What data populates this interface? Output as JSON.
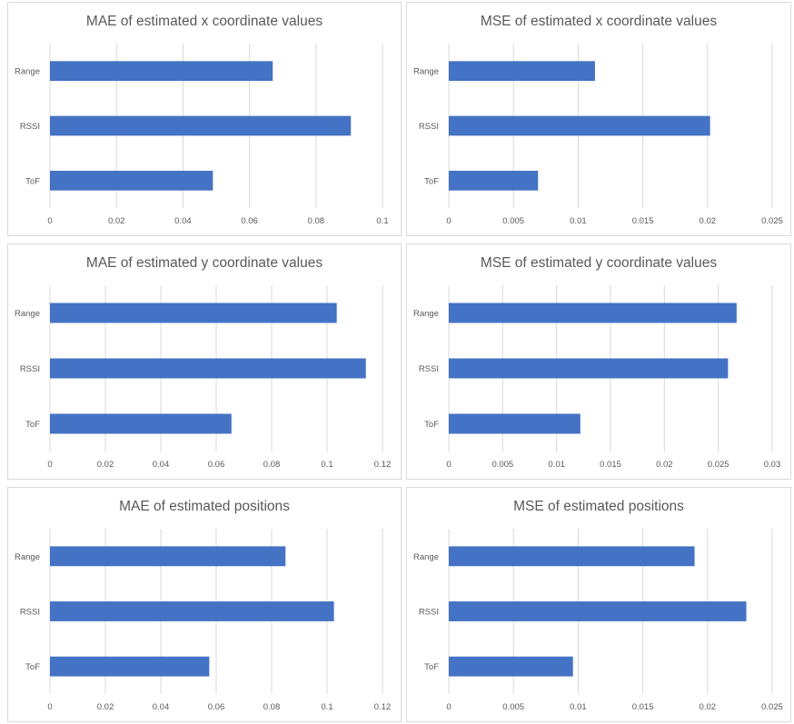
{
  "chart_data": [
    {
      "type": "bar",
      "orientation": "horizontal",
      "title": "MAE of estimated x coordinate values",
      "categories": [
        "Range",
        "RSSI",
        "ToF"
      ],
      "values": [
        0.067,
        0.0905,
        0.049
      ],
      "xlim": [
        0,
        0.1
      ],
      "ticks": [
        "0",
        "0.02",
        "0.04",
        "0.06",
        "0.08",
        "0.1"
      ],
      "grid": true,
      "bar_color": "#4472c4"
    },
    {
      "type": "bar",
      "orientation": "horizontal",
      "title": "MSE of estimated x coordinate values",
      "categories": [
        "Range",
        "RSSI",
        "ToF"
      ],
      "values": [
        0.0113,
        0.0202,
        0.0069
      ],
      "xlim": [
        0,
        0.025
      ],
      "ticks": [
        "0",
        "0.005",
        "0.01",
        "0.015",
        "0.02",
        "0.025"
      ],
      "grid": true,
      "bar_color": "#4472c4"
    },
    {
      "type": "bar",
      "orientation": "horizontal",
      "title": "MAE of estimated y coordinate values",
      "categories": [
        "Range",
        "RSSI",
        "ToF"
      ],
      "values": [
        0.1035,
        0.114,
        0.0655
      ],
      "xlim": [
        0,
        0.12
      ],
      "ticks": [
        "0",
        "0.02",
        "0.04",
        "0.06",
        "0.08",
        "0.1",
        "0.12"
      ],
      "grid": true,
      "bar_color": "#4472c4"
    },
    {
      "type": "bar",
      "orientation": "horizontal",
      "title": "MSE of estimated y coordinate values",
      "categories": [
        "Range",
        "RSSI",
        "ToF"
      ],
      "values": [
        0.0267,
        0.0259,
        0.0122
      ],
      "xlim": [
        0,
        0.03
      ],
      "ticks": [
        "0",
        "0.005",
        "0.01",
        "0.015",
        "0.02",
        "0.025",
        "0.03"
      ],
      "grid": true,
      "bar_color": "#4472c4"
    },
    {
      "type": "bar",
      "orientation": "horizontal",
      "title": "MAE of estimated positions",
      "categories": [
        "Range",
        "RSSI",
        "ToF"
      ],
      "values": [
        0.085,
        0.1025,
        0.0575
      ],
      "xlim": [
        0,
        0.12
      ],
      "ticks": [
        "0",
        "0.02",
        "0.04",
        "0.06",
        "0.08",
        "0.1",
        "0.12"
      ],
      "grid": true,
      "bar_color": "#4472c4"
    },
    {
      "type": "bar",
      "orientation": "horizontal",
      "title": "MSE of estimated positions",
      "categories": [
        "Range",
        "RSSI",
        "ToF"
      ],
      "values": [
        0.019,
        0.023,
        0.0096
      ],
      "xlim": [
        0,
        0.025
      ],
      "ticks": [
        "0",
        "0.005",
        "0.01",
        "0.015",
        "0.02",
        "0.025"
      ],
      "grid": true,
      "bar_color": "#4472c4"
    }
  ]
}
